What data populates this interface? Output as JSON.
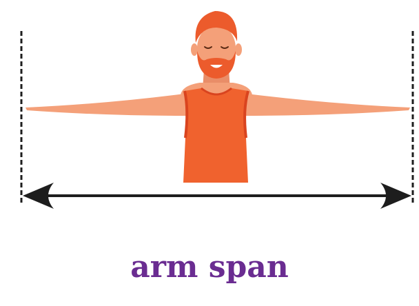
{
  "caption": "arm span",
  "colors": {
    "skin": "#f4a079",
    "skin_shadow": "#e98d68",
    "shirt": "#f0622e",
    "shirt_trim": "#d9441f",
    "hair": "#ec5b2c",
    "arrow": "#1d1d1d",
    "caption": "#6a2c91"
  },
  "icons": {
    "figure": "man-with-arms-outstretched",
    "measure": "double-headed-arrow"
  }
}
